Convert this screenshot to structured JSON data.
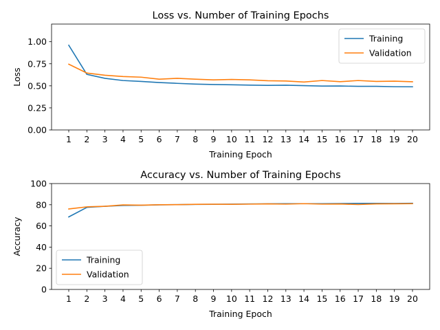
{
  "chart_data": [
    {
      "type": "line",
      "title": "Loss vs. Number of Training Epochs",
      "xlabel": "Training Epoch",
      "ylabel": "Loss",
      "x": [
        1,
        2,
        3,
        4,
        5,
        6,
        7,
        8,
        9,
        10,
        11,
        12,
        13,
        14,
        15,
        16,
        17,
        18,
        19,
        20
      ],
      "x_ticks": [
        "1",
        "2",
        "3",
        "4",
        "5",
        "6",
        "7",
        "8",
        "9",
        "10",
        "11",
        "12",
        "13",
        "14",
        "15",
        "16",
        "17",
        "18",
        "19",
        "20"
      ],
      "ylim": [
        0,
        1.2
      ],
      "y_ticks": [
        0,
        0.25,
        0.5,
        0.75,
        1.0
      ],
      "y_tick_labels": [
        "0.00",
        "0.25",
        "0.50",
        "0.75",
        "1.00"
      ],
      "legend_position": "upper right",
      "grid": false,
      "series": [
        {
          "name": "Training",
          "color": "#1f77b4",
          "values": [
            0.96,
            0.63,
            0.585,
            0.56,
            0.55,
            0.537,
            0.528,
            0.52,
            0.515,
            0.512,
            0.508,
            0.505,
            0.507,
            0.502,
            0.497,
            0.498,
            0.494,
            0.494,
            0.49,
            0.489
          ]
        },
        {
          "name": "Validation",
          "color": "#ff7f0e",
          "values": [
            0.745,
            0.645,
            0.62,
            0.605,
            0.598,
            0.575,
            0.585,
            0.575,
            0.567,
            0.572,
            0.567,
            0.558,
            0.555,
            0.543,
            0.56,
            0.547,
            0.56,
            0.55,
            0.553,
            0.546
          ]
        }
      ]
    },
    {
      "type": "line",
      "title": "Accuracy vs. Number of Training Epochs",
      "xlabel": "Training Epoch",
      "ylabel": "Accuracy",
      "x": [
        1,
        2,
        3,
        4,
        5,
        6,
        7,
        8,
        9,
        10,
        11,
        12,
        13,
        14,
        15,
        16,
        17,
        18,
        19,
        20
      ],
      "x_ticks": [
        "1",
        "2",
        "3",
        "4",
        "5",
        "6",
        "7",
        "8",
        "9",
        "10",
        "11",
        "12",
        "13",
        "14",
        "15",
        "16",
        "17",
        "18",
        "19",
        "20"
      ],
      "ylim": [
        0,
        100
      ],
      "y_ticks": [
        0,
        20,
        40,
        60,
        80,
        100
      ],
      "y_tick_labels": [
        "0",
        "20",
        "40",
        "60",
        "80",
        "100"
      ],
      "legend_position": "lower left",
      "grid": false,
      "series": [
        {
          "name": "Training",
          "color": "#1f77b4",
          "values": [
            68.5,
            77.5,
            78.5,
            79.3,
            79.5,
            79.9,
            80.1,
            80.3,
            80.4,
            80.6,
            80.7,
            80.9,
            81.0,
            81.0,
            81.0,
            81.1,
            81.3,
            81.3,
            81.2,
            81.4
          ]
        },
        {
          "name": "Validation",
          "color": "#ff7f0e",
          "values": [
            76.0,
            78.0,
            78.5,
            79.8,
            79.6,
            80.0,
            80.1,
            80.4,
            80.5,
            80.4,
            80.6,
            80.8,
            80.6,
            81.0,
            80.6,
            80.7,
            80.2,
            80.8,
            80.9,
            81.0
          ]
        }
      ]
    }
  ]
}
